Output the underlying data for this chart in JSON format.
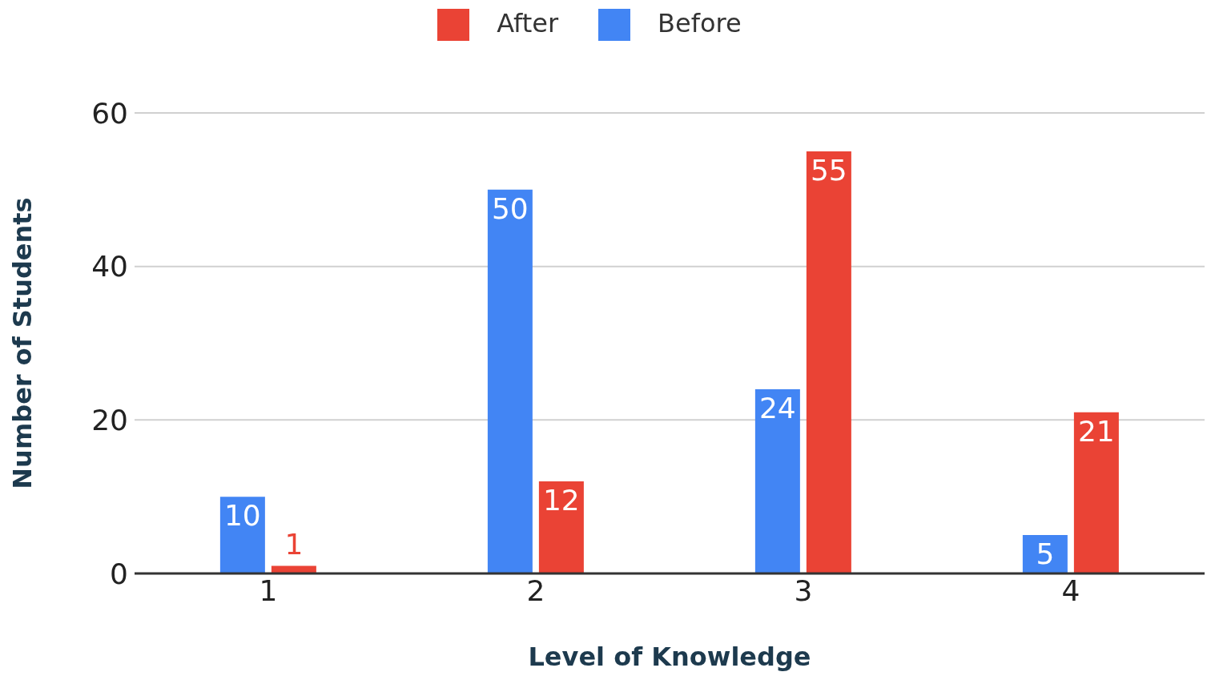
{
  "chart_data": {
    "type": "bar",
    "xlabel": "Level of Knowledge",
    "ylabel": "Number of Students",
    "categories": [
      "1",
      "2",
      "3",
      "4"
    ],
    "series": [
      {
        "name": "Before",
        "color": "#4285f4",
        "values": [
          10,
          50,
          24,
          5
        ]
      },
      {
        "name": "After",
        "color": "#ea4335",
        "values": [
          1,
          12,
          55,
          21
        ]
      }
    ],
    "ylim": [
      0,
      60
    ],
    "yticks": [
      0,
      20,
      40,
      60
    ],
    "grid": "y",
    "legend": "top",
    "data_labels": true
  }
}
